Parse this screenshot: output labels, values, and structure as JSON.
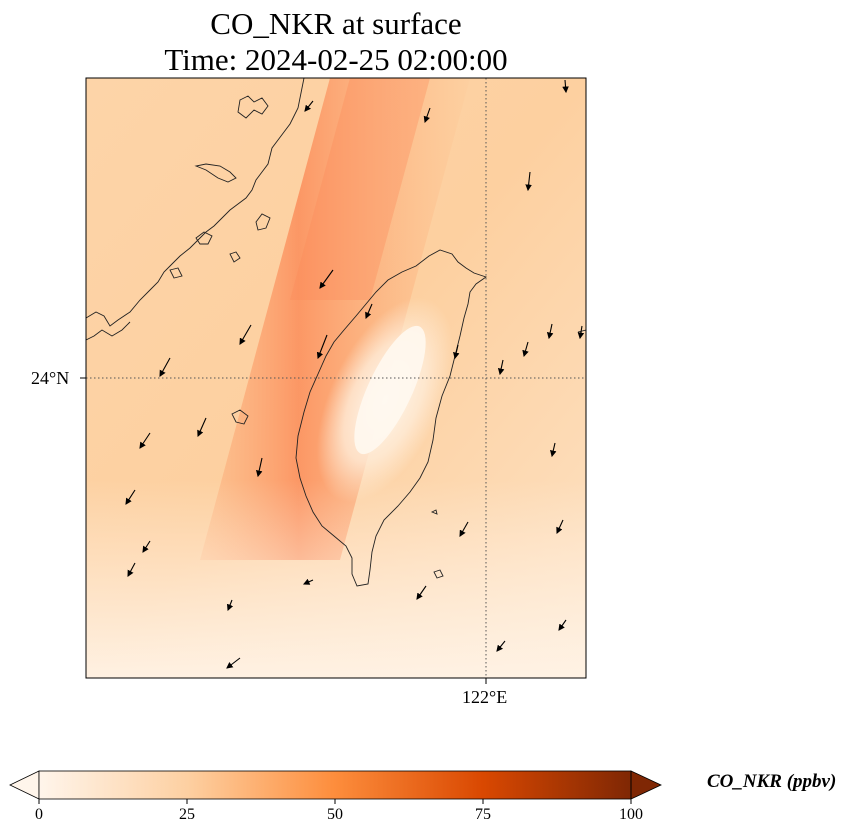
{
  "figure": {
    "title_line1": "CO_NKR at surface",
    "title_line2": "Time: 2024-02-25 02:00:00"
  },
  "map": {
    "type": "map",
    "variable": "CO_NKR",
    "level": "surface",
    "gridlines": [
      {
        "axis": "latitude",
        "value": 24,
        "label": "24°N"
      },
      {
        "axis": "longitude",
        "value": 122,
        "label": "122°E"
      }
    ],
    "features": [
      "Taiwan island coastline",
      "China mainland coastline",
      "wind vectors"
    ],
    "wind_direction": "northeasterly to northerly",
    "field_pattern": "highest concentrations in a plume along the China coast toward the north; lowest over Taiwan island and the south-east"
  },
  "colorbar": {
    "label": "CO_NKR (ppbv)",
    "colormap": "Oranges",
    "ticks": [
      "0",
      "25",
      "50",
      "75",
      "100"
    ],
    "range": [
      0,
      100
    ],
    "extend": "both",
    "colors": [
      "#fff5eb",
      "#fdd0a2",
      "#fd8d3c",
      "#d94801",
      "#7f2704"
    ]
  }
}
